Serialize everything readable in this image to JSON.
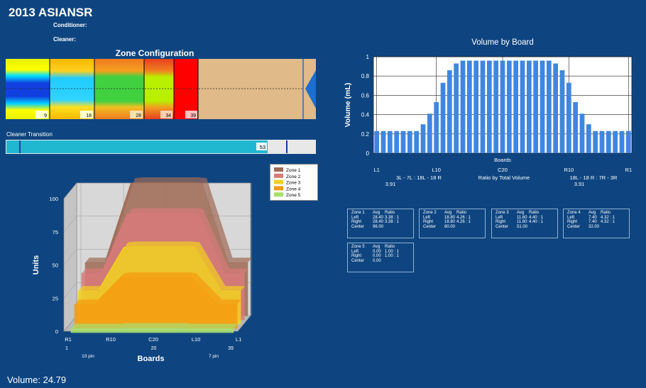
{
  "header": {
    "title": "2013 ASIANSR",
    "conditioner_label": "Conditioner:",
    "cleaner_label": "Cleaner:"
  },
  "zone_config": {
    "title": "Zone Configuration",
    "markers": [
      "9",
      "18",
      "28",
      "34",
      "39"
    ]
  },
  "cleaner_transition": {
    "label": "Cleaner Transition",
    "value": "53"
  },
  "volume_text": "Volume: 24.79",
  "colors": {
    "background": "#0e4580",
    "bar": "#3f86e0",
    "zone1": "#a06a55",
    "zone2": "#d97a7a",
    "zone3": "#f2d21e",
    "zone4": "#f59a0f",
    "zone5": "#a8e06a"
  },
  "chart_data": [
    {
      "type": "bar",
      "title": "Volume by Board",
      "ylabel": "Volume (mL)",
      "xlabel": "Boards",
      "ylim": [
        0,
        1
      ],
      "yticks": [
        "0",
        "0.2",
        "0.4",
        "0.6",
        "0.8",
        "1"
      ],
      "xtick_labels": [
        "L1",
        "L10",
        "C20",
        "R10",
        "R1"
      ],
      "values": [
        0.23,
        0.23,
        0.23,
        0.23,
        0.23,
        0.23,
        0.23,
        0.3,
        0.41,
        0.53,
        0.73,
        0.86,
        0.93,
        0.96,
        0.96,
        0.96,
        0.96,
        0.96,
        0.96,
        0.96,
        0.96,
        0.96,
        0.96,
        0.96,
        0.96,
        0.96,
        0.96,
        0.93,
        0.86,
        0.73,
        0.53,
        0.41,
        0.3,
        0.23,
        0.23,
        0.23,
        0.23,
        0.23,
        0.23
      ],
      "ratio_left": "3L - 7L : 18L - 18 R",
      "ratio_left_value": "3.91",
      "ratio_center": "Ratio by Total Volume",
      "ratio_right": "18L - 18 R : 7R - 3R",
      "ratio_right_value": "3.91",
      "grid": true
    },
    {
      "type": "area",
      "ylabel": "Units",
      "xlabel": "Boards",
      "ylim": [
        0,
        100
      ],
      "yticks": [
        "0",
        "25",
        "50",
        "75",
        "100"
      ],
      "xtick_labels": [
        "R1",
        "R10",
        "C20",
        "L10",
        "L1"
      ],
      "x_sub_labels": [
        "1",
        "20",
        "39"
      ],
      "pin_labels": [
        "10 pin",
        "7 pin"
      ],
      "legend": [
        "Zone 1",
        "Zone 2",
        "Zone 3",
        "Zone 4",
        "Zone 5"
      ],
      "series": [
        {
          "name": "Zone 1",
          "low": 40,
          "high": 100
        },
        {
          "name": "Zone 2",
          "low": 35,
          "high": 80
        },
        {
          "name": "Zone 3",
          "low": 25,
          "high": 58
        },
        {
          "name": "Zone 4",
          "low": 18,
          "high": 38
        },
        {
          "name": "Zone 5",
          "low": 3,
          "high": 3
        }
      ]
    }
  ],
  "zone_tables": [
    {
      "zone": "Zone 1",
      "avg_label": "Avg",
      "ratio_label": "Ratio",
      "left": "28.40",
      "left_ratio": "3.38 : 1",
      "right": "28.40",
      "right_ratio": "3.38 : 1",
      "center": "96.00"
    },
    {
      "zone": "Zone 2",
      "avg_label": "Avg",
      "ratio_label": "Ratio",
      "left": "18.80",
      "left_ratio": "4.26 : 1",
      "right": "18.80",
      "right_ratio": "4.26 : 1",
      "center": "80.00"
    },
    {
      "zone": "Zone 3",
      "avg_label": "Avg",
      "ratio_label": "Ratio",
      "left": "11.60",
      "left_ratio": "4.40 : 1",
      "right": "11.60",
      "right_ratio": "4.40 : 1",
      "center": "51.00"
    },
    {
      "zone": "Zone 4",
      "avg_label": "Avg",
      "ratio_label": "Ratio",
      "left": "7.40",
      "left_ratio": "4.32 : 1",
      "right": "7.40",
      "right_ratio": "4.32 : 1",
      "center": "32.00"
    },
    {
      "zone": "Zone 5",
      "avg_label": "Avg",
      "ratio_label": "Ratio",
      "left": "0.00",
      "left_ratio": "1.00 : 1",
      "right": "0.00",
      "right_ratio": "1.00 : 1",
      "center": "0.00"
    }
  ],
  "row_labels": {
    "left": "Left",
    "right": "Right",
    "center": "Center"
  }
}
